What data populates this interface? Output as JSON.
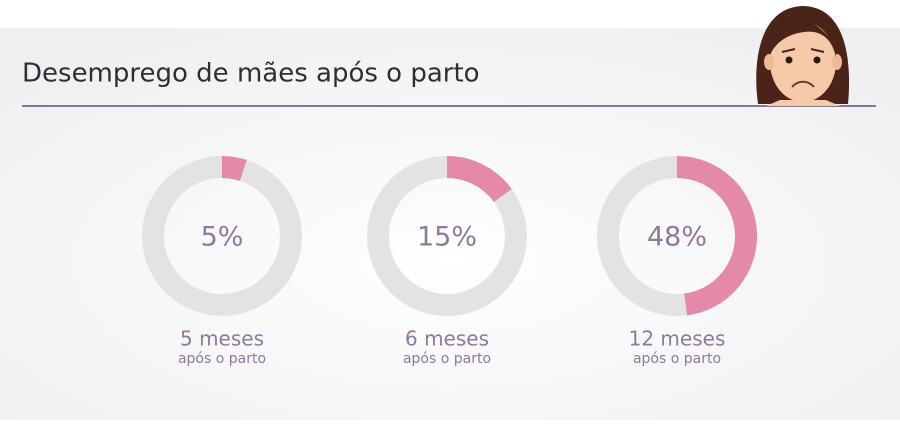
{
  "chart_data": {
    "type": "donut",
    "title": "Desemprego de mães após o parto",
    "categories": [
      "5 meses",
      "6 meses",
      "12 meses"
    ],
    "sublabels": [
      "após o parto",
      "após o parto",
      "após o parto"
    ],
    "values": [
      5,
      15,
      48
    ],
    "value_labels": [
      "5%",
      "15%",
      "48%"
    ],
    "ylim": [
      0,
      100
    ],
    "color": "#e589ab",
    "track_color": "#e3e3e3"
  }
}
